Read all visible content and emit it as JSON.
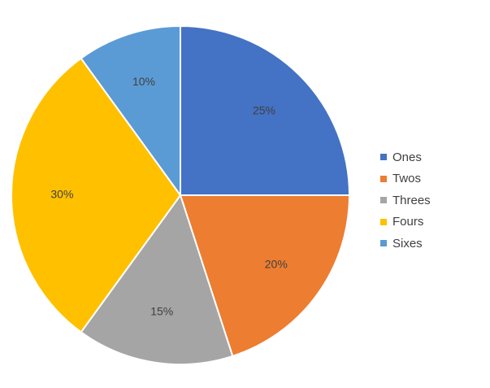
{
  "chart_data": {
    "type": "pie",
    "title": "",
    "categories": [
      "Ones",
      "Twos",
      "Threes",
      "Fours",
      "Sixes"
    ],
    "values": [
      25,
      20,
      15,
      30,
      10
    ],
    "labels": [
      "25%",
      "20%",
      "15%",
      "30%",
      "10%"
    ],
    "colors": [
      "#4472C4",
      "#ED7D31",
      "#A5A5A5",
      "#FFC000",
      "#5B9BD5"
    ],
    "start_angle": "12 o'clock",
    "direction": "clockwise",
    "legend": {
      "placement": "right",
      "entries": [
        "Ones",
        "Twos",
        "Threes",
        "Fours",
        "Sixes"
      ]
    }
  }
}
